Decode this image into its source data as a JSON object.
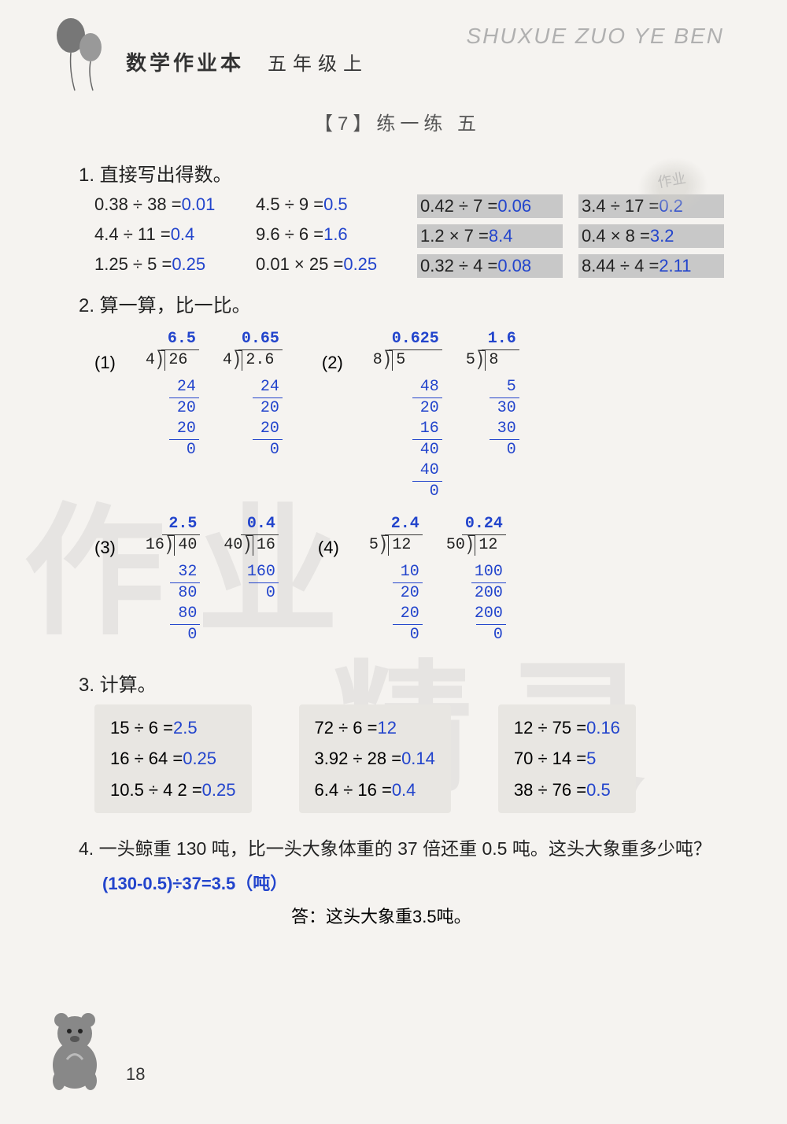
{
  "header": {
    "pinyin": "SHUXUE ZUO YE BEN",
    "book_title": "数学作业本",
    "grade": "五年级上",
    "section": "【7】练一练 五",
    "stamp": "作业"
  },
  "q1": {
    "title": "1. 直接写出得数。",
    "rows": [
      [
        {
          "e": "0.38 ÷ 38 =",
          "a": "0.01"
        },
        {
          "e": "4.5 ÷ 9 =",
          "a": "0.5"
        },
        {
          "e": "0.42 ÷ 7 =",
          "a": "0.06",
          "hl": true
        },
        {
          "e": "3.4 ÷ 17 =",
          "a": "0.2",
          "hl": true
        }
      ],
      [
        {
          "e": "4.4 ÷ 11 =",
          "a": "0.4"
        },
        {
          "e": "9.6 ÷ 6 =",
          "a": "1.6"
        },
        {
          "e": "1.2 × 7 =",
          "a": "8.4",
          "hl": true
        },
        {
          "e": "0.4 × 8 =",
          "a": "3.2",
          "hl": true
        }
      ],
      [
        {
          "e": "1.25 ÷ 5 =",
          "a": "0.25"
        },
        {
          "e": "0.01 × 25 =",
          "a": "0.25"
        },
        {
          "e": "0.32 ÷ 4 =",
          "a": "0.08",
          "hl": true
        },
        {
          "e": "8.44 ÷ 4 =",
          "a": "2.11",
          "hl": true
        }
      ]
    ]
  },
  "q2": {
    "title": "2. 算一算，比一比。",
    "groups": [
      {
        "label": "(1)",
        "problems": [
          {
            "divisor": "4",
            "dividend": "26",
            "quotient": "6.5",
            "steps": [
              "24",
              "20",
              "20",
              "0"
            ]
          },
          {
            "divisor": "4",
            "dividend": "2.6",
            "quotient": "0.65",
            "steps": [
              "24",
              "20",
              "20",
              "0"
            ]
          }
        ]
      },
      {
        "label": "(2)",
        "problems": [
          {
            "divisor": "8",
            "dividend": "5",
            "quotient": "0.625",
            "steps": [
              "48",
              "20",
              "16",
              "40",
              "40",
              "0"
            ]
          },
          {
            "divisor": "5",
            "dividend": "8",
            "quotient": "1.6",
            "steps": [
              "5",
              "30",
              "30",
              "0"
            ]
          }
        ]
      },
      {
        "label": "(3)",
        "problems": [
          {
            "divisor": "16",
            "dividend": "40",
            "quotient": "2.5",
            "steps": [
              "32",
              "80",
              "80",
              "0"
            ]
          },
          {
            "divisor": "40",
            "dividend": "16",
            "quotient": "0.4",
            "steps": [
              "160",
              "0"
            ]
          }
        ]
      },
      {
        "label": "(4)",
        "problems": [
          {
            "divisor": "5",
            "dividend": "12",
            "quotient": "2.4",
            "steps": [
              "10",
              "20",
              "20",
              "0"
            ]
          },
          {
            "divisor": "50",
            "dividend": "12",
            "quotient": "0.24",
            "steps": [
              "100",
              "200",
              "200",
              "0"
            ]
          }
        ]
      }
    ]
  },
  "q3": {
    "title": "3. 计算。",
    "cols": [
      [
        {
          "e": "15 ÷ 6 =",
          "a": "2.5"
        },
        {
          "e": "16 ÷ 64 =",
          "a": "0.25"
        },
        {
          "e": "10.5 ÷ 4 2 =",
          "a": "0.25"
        }
      ],
      [
        {
          "e": "72 ÷ 6 =",
          "a": "12"
        },
        {
          "e": "3.92 ÷ 28 =",
          "a": "0.14"
        },
        {
          "e": "6.4 ÷ 16 =",
          "a": "0.4"
        }
      ],
      [
        {
          "e": "12 ÷ 75 =",
          "a": "0.16"
        },
        {
          "e": "70 ÷ 14 =",
          "a": "5"
        },
        {
          "e": "38 ÷ 76 =",
          "a": "0.5"
        }
      ]
    ]
  },
  "q4": {
    "text": "4. 一头鲸重 130 吨，比一头大象体重的 37 倍还重 0.5 吨。这头大象重多少吨？",
    "work": "(130-0.5)÷37=3.5（吨）",
    "answer": "答：这头大象重3.5吨。"
  },
  "page_num": "18",
  "watermark": {
    "w1": "作业",
    "w2": "精灵"
  },
  "colors": {
    "answer": "#2244cc",
    "text": "#222222",
    "bg": "#f5f3f0",
    "highlight": "#c8c8c8",
    "pinyin": "#b0b0b0"
  }
}
